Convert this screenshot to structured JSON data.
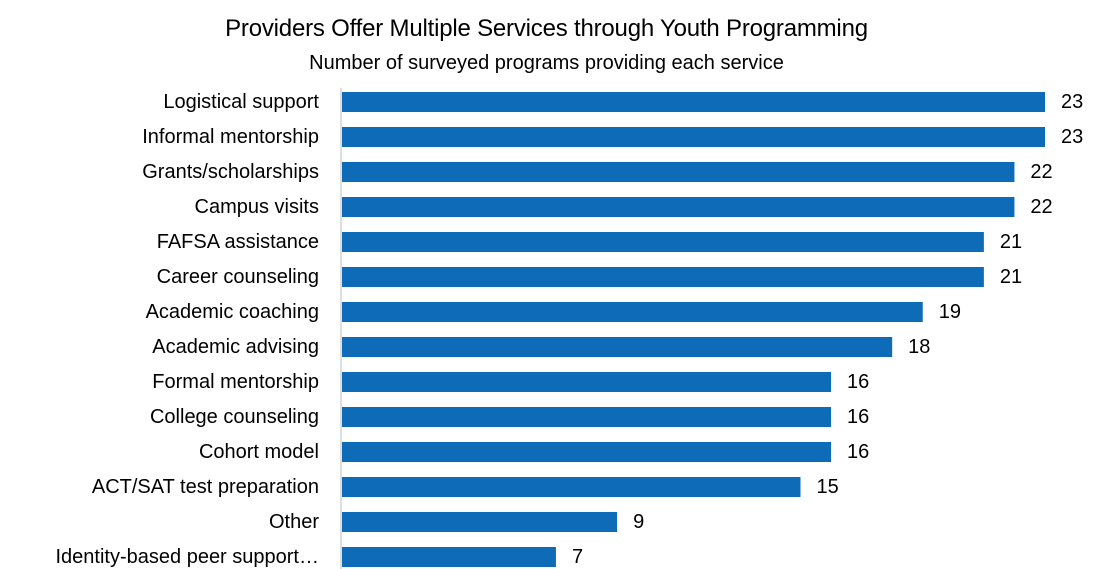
{
  "chart_data": {
    "type": "bar",
    "orientation": "horizontal",
    "title": "Providers Offer Multiple Services through Youth Programming",
    "subtitle": "Number of surveyed programs providing each service",
    "categories": [
      "Logistical support",
      "Informal mentorship",
      "Grants/scholarships",
      "Campus visits",
      "FAFSA assistance",
      "Career counseling",
      "Academic coaching",
      "Academic advising",
      "Formal mentorship",
      "College counseling",
      "Cohort model",
      "ACT/SAT test preparation",
      "Other",
      "Identity-based peer support…"
    ],
    "values": [
      23,
      23,
      22,
      22,
      21,
      21,
      19,
      18,
      16,
      16,
      16,
      15,
      9,
      7
    ],
    "data_labels": true,
    "xlim": [
      0,
      23
    ],
    "grid": false,
    "legend": "none",
    "colors": {
      "bar": "#0E6BB8",
      "axis": "#bfbfbf"
    }
  }
}
